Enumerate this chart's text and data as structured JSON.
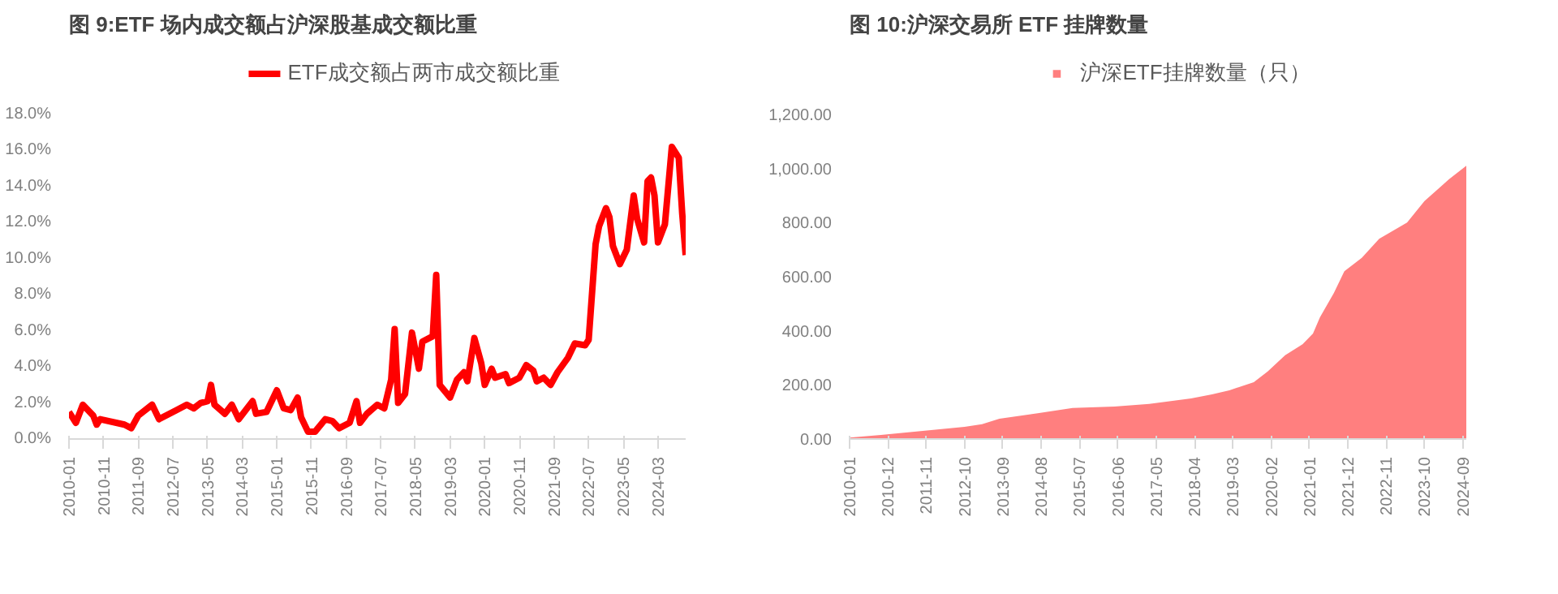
{
  "chart_data": [
    {
      "type": "line",
      "title": "图 9:ETF 场内成交额占沪深股基成交额比重",
      "legend": "top",
      "series": [
        {
          "name": "ETF成交额占两市成交额比重",
          "color": "#ff0000",
          "x": [
            "2010-01",
            "2010-03",
            "2010-05",
            "2010-08",
            "2010-09",
            "2010-10",
            "2011-05",
            "2011-07",
            "2011-09",
            "2012-01",
            "2012-03",
            "2012-08",
            "2012-11",
            "2013-01",
            "2013-03",
            "2013-05",
            "2013-06",
            "2013-07",
            "2013-10",
            "2013-12",
            "2014-02",
            "2014-06",
            "2014-07",
            "2014-10",
            "2015-01",
            "2015-03",
            "2015-05",
            "2015-07",
            "2015-08",
            "2015-10",
            "2015-12",
            "2016-03",
            "2016-05",
            "2016-07",
            "2016-10",
            "2016-12",
            "2017-01",
            "2017-03",
            "2017-06",
            "2017-08",
            "2017-10",
            "2017-11",
            "2017-12",
            "2018-02",
            "2018-04",
            "2018-05",
            "2018-06",
            "2018-07",
            "2018-10",
            "2018-11",
            "2018-12",
            "2019-03",
            "2019-05",
            "2019-07",
            "2019-08",
            "2019-10",
            "2019-12",
            "2020-01",
            "2020-03",
            "2020-04",
            "2020-07",
            "2020-08",
            "2020-11",
            "2021-01",
            "2021-03",
            "2021-04",
            "2021-06",
            "2021-08",
            "2021-10",
            "2022-01",
            "2022-03",
            "2022-06",
            "2022-07",
            "2022-09",
            "2022-10",
            "2022-12",
            "2023-01",
            "2023-02",
            "2023-04",
            "2023-06",
            "2023-08",
            "2023-09",
            "2023-11",
            "2023-12",
            "2024-01",
            "2024-02",
            "2024-03",
            "2024-05",
            "2024-07",
            "2024-09",
            "2024-10",
            "2024-11"
          ],
          "values": [
            1.5,
            0.9,
            1.9,
            1.3,
            0.8,
            1.1,
            0.8,
            0.6,
            1.3,
            1.9,
            1.1,
            1.6,
            1.9,
            1.7,
            2.0,
            2.1,
            3.0,
            1.9,
            1.4,
            1.9,
            1.1,
            2.1,
            1.4,
            1.5,
            2.7,
            1.7,
            1.6,
            2.3,
            1.2,
            0.4,
            0.4,
            1.1,
            1.0,
            0.6,
            0.9,
            2.1,
            0.9,
            1.4,
            1.9,
            1.7,
            3.3,
            6.1,
            2.0,
            2.5,
            5.9,
            4.9,
            3.9,
            5.4,
            5.7,
            9.1,
            3.0,
            2.3,
            3.3,
            3.7,
            3.2,
            5.6,
            4.2,
            3.0,
            3.9,
            3.4,
            3.6,
            3.1,
            3.4,
            4.1,
            3.8,
            3.2,
            3.4,
            3.0,
            3.7,
            4.5,
            5.3,
            5.2,
            5.5,
            10.8,
            11.8,
            12.8,
            12.3,
            10.7,
            9.7,
            10.5,
            13.5,
            12.2,
            10.9,
            14.3,
            14.5,
            13.5,
            10.9,
            11.9,
            16.2,
            15.6,
            12.5,
            10.2
          ]
        }
      ],
      "xlim": [
        "2010-01",
        "2024-11"
      ],
      "xticks": [
        "2010-01",
        "2010-11",
        "2011-09",
        "2012-07",
        "2013-05",
        "2014-03",
        "2015-01",
        "2015-11",
        "2016-09",
        "2017-07",
        "2018-05",
        "2019-03",
        "2020-01",
        "2020-11",
        "2021-09",
        "2022-07",
        "2023-05",
        "2024-03"
      ],
      "ylim": [
        0,
        18
      ],
      "yticks": [
        {
          "value": 0,
          "label": "0.0%"
        },
        {
          "value": 2,
          "label": "2.0%"
        },
        {
          "value": 4,
          "label": "4.0%"
        },
        {
          "value": 6,
          "label": "6.0%"
        },
        {
          "value": 8,
          "label": "8.0%"
        },
        {
          "value": 10,
          "label": "10.0%"
        },
        {
          "value": 12,
          "label": "12.0%"
        },
        {
          "value": 14,
          "label": "14.0%"
        },
        {
          "value": 16,
          "label": "16.0%"
        },
        {
          "value": 18,
          "label": "18.0%"
        }
      ]
    },
    {
      "type": "area",
      "title": "图 10:沪深交易所 ETF 挂牌数量",
      "legend": "top",
      "series": [
        {
          "name": "沪深ETF挂牌数量（只）",
          "color": "#ff7f7f",
          "x": [
            "2010-01",
            "2010-10",
            "2011-10",
            "2012-10",
            "2013-03",
            "2013-08",
            "2014-07",
            "2015-05",
            "2016-05",
            "2017-03",
            "2018-03",
            "2018-09",
            "2019-02",
            "2019-09",
            "2020-01",
            "2020-06",
            "2020-11",
            "2021-02",
            "2021-04",
            "2021-08",
            "2021-11",
            "2022-04",
            "2022-09",
            "2023-05",
            "2023-10",
            "2024-05",
            "2024-10"
          ],
          "values": [
            5,
            15,
            30,
            45,
            55,
            75,
            95,
            115,
            120,
            130,
            150,
            165,
            180,
            210,
            250,
            310,
            350,
            390,
            450,
            540,
            620,
            670,
            740,
            800,
            880,
            960,
            1010
          ]
        }
      ],
      "xlim": [
        "2010-01",
        "2024-10"
      ],
      "xticks": [
        "2010-01",
        "2010-12",
        "2011-11",
        "2012-10",
        "2013-09",
        "2014-08",
        "2015-07",
        "2016-06",
        "2017-05",
        "2018-04",
        "2019-03",
        "2020-02",
        "2021-01",
        "2021-12",
        "2022-11",
        "2023-10",
        "2024-09"
      ],
      "ylim": [
        0,
        1200
      ],
      "yticks": [
        {
          "value": 0,
          "label": "0.00"
        },
        {
          "value": 200,
          "label": "200.00"
        },
        {
          "value": 400,
          "label": "400.00"
        },
        {
          "value": 600,
          "label": "600.00"
        },
        {
          "value": 800,
          "label": "800.00"
        },
        {
          "value": 1000,
          "label": "1,000.00"
        },
        {
          "value": 1200,
          "label": "1,200.00"
        }
      ]
    }
  ]
}
